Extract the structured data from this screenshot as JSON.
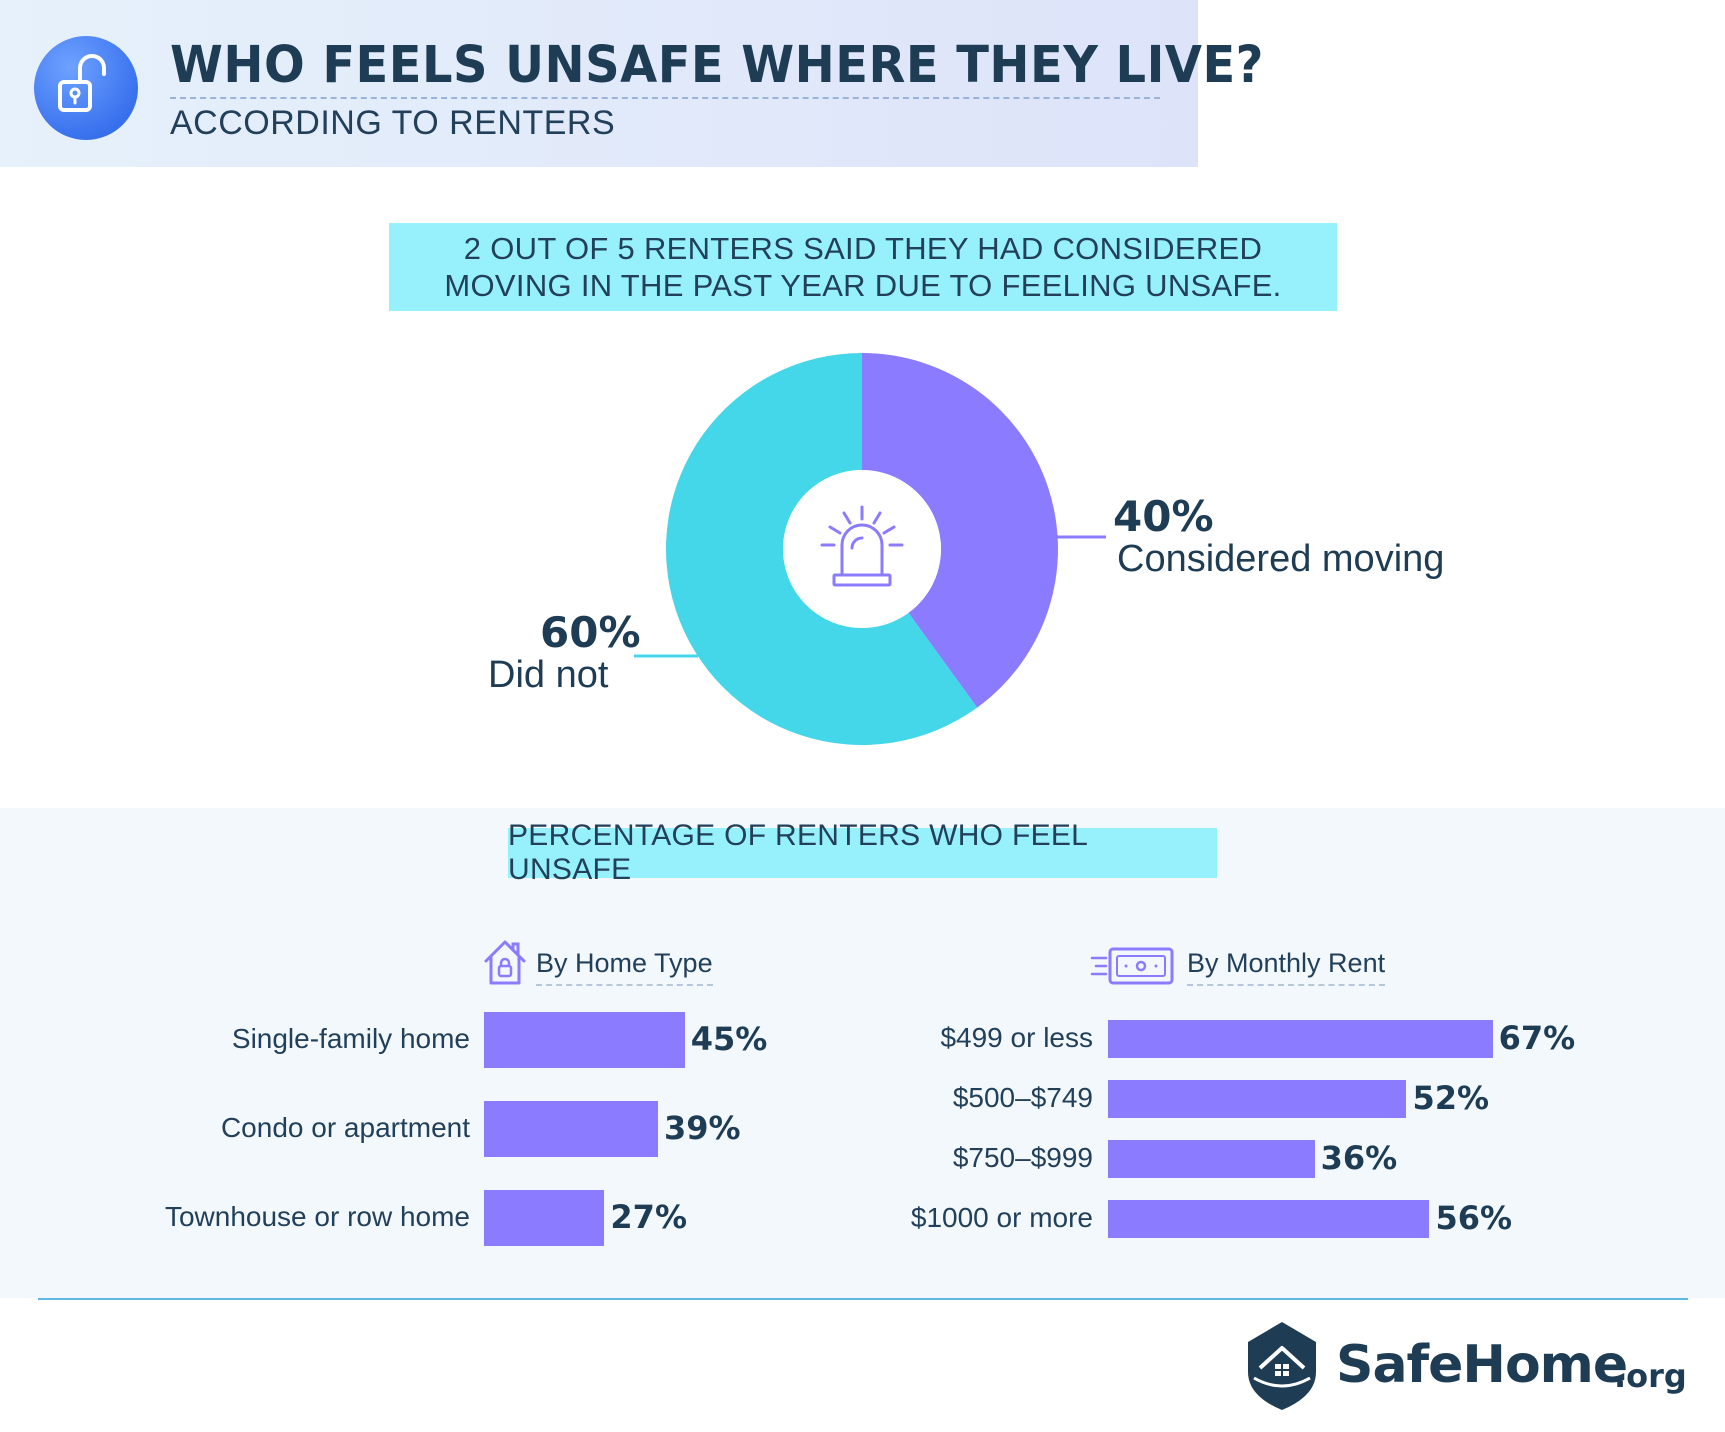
{
  "header": {
    "title": "WHO FEELS UNSAFE WHERE THEY LIVE?",
    "subtitle": "ACCORDING TO RENTERS"
  },
  "callout": {
    "text": "2 OUT OF 5 RENTERS SAID THEY HAD CONSIDERED MOVING IN THE PAST YEAR DUE TO FEELING UNSAFE."
  },
  "icons": {
    "header": "unlocked-padlock-icon",
    "donut_center": "siren-icon",
    "home_type": "house-lock-icon",
    "monthly_rent": "money-bill-icon",
    "brand": "shield-house-logo"
  },
  "colors": {
    "purple": "#8b7bff",
    "cyan": "#44d7ea",
    "dark": "#1e3d55",
    "callout_bg": "#97f1fc"
  },
  "section_title": "PERCENTAGE OF RENTERS WHO FEEL UNSAFE",
  "groups": {
    "home_type_label": "By Home Type",
    "monthly_rent_label": "By Monthly Rent"
  },
  "brand": {
    "name": "SafeHome",
    "suffix": ".org"
  },
  "chart_data": [
    {
      "type": "pie",
      "slices": [
        {
          "label": "Considered moving",
          "value": 40,
          "value_label": "40%",
          "color": "#8b7bff"
        },
        {
          "label": "Did not",
          "value": 60,
          "value_label": "60%",
          "color": "#44d7ea"
        }
      ]
    },
    {
      "type": "bar",
      "title": "By Home Type",
      "orientation": "horizontal",
      "categories": [
        "Single-family home",
        "Condo or apartment",
        "Townhouse or row home"
      ],
      "values": [
        45,
        39,
        27
      ],
      "value_labels": [
        "45%",
        "39%",
        "27%"
      ]
    },
    {
      "type": "bar",
      "title": "By Monthly Rent",
      "orientation": "horizontal",
      "categories": [
        "$499 or less",
        "$500–$749",
        "$750–$999",
        "$1000 or more"
      ],
      "values": [
        67,
        52,
        36,
        56
      ],
      "value_labels": [
        "67%",
        "52%",
        "36%",
        "56%"
      ]
    }
  ]
}
